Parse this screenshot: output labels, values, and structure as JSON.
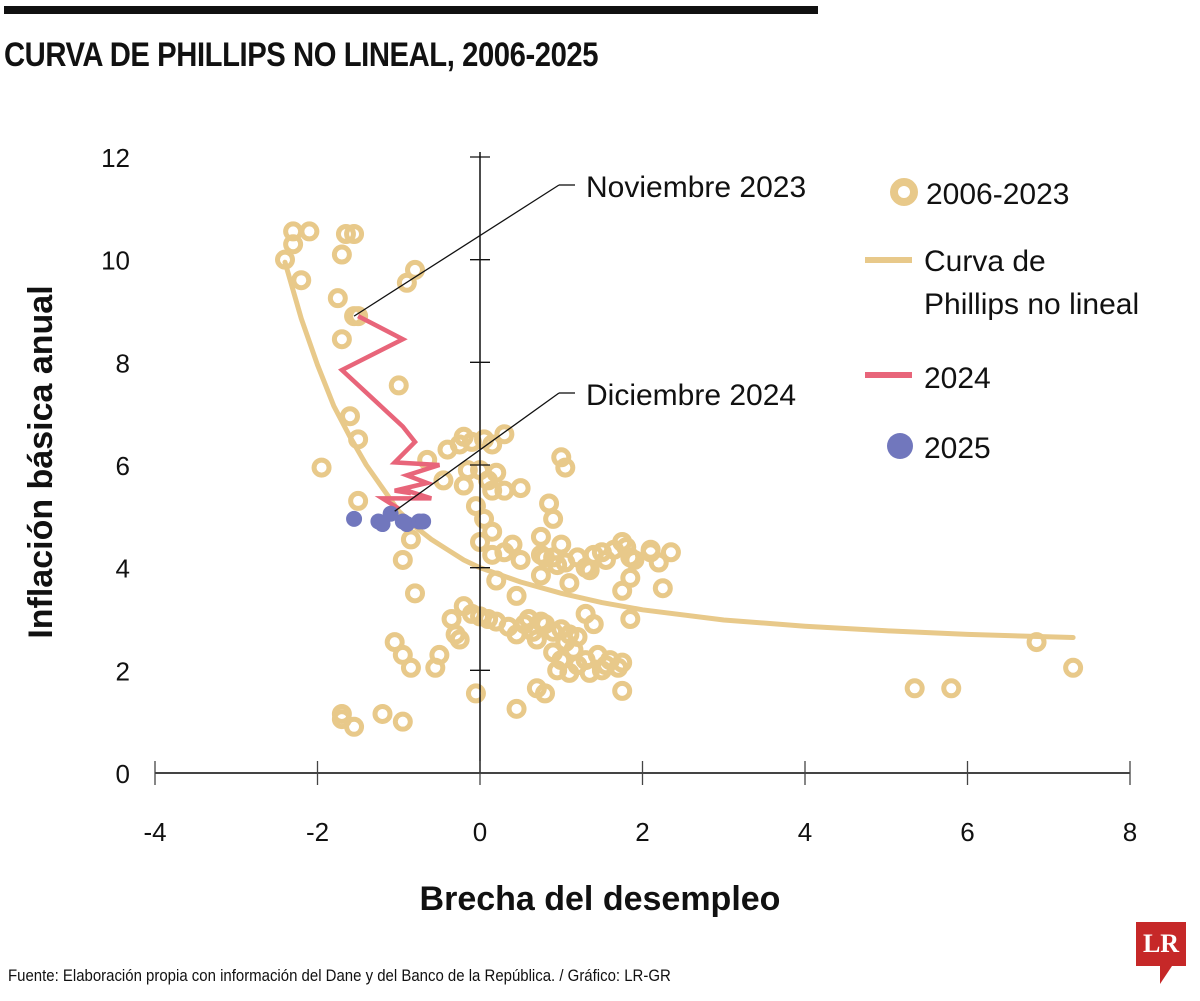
{
  "header": {
    "title": "CURVA DE PHILLIPS NO LINEAL, 2006-2025"
  },
  "footer": {
    "source": "Fuente: Elaboración propia con información del Dane y del Banco de la República. / Gráfico: LR-GR",
    "logo": "LR"
  },
  "colors": {
    "scatter_2006_2023": "#E8C98A",
    "curve": "#E8C98A",
    "line_2024": "#E8657A",
    "points_2025": "#7177BD",
    "axis": "#111111"
  },
  "chart_data": {
    "type": "scatter",
    "title": "CURVA DE PHILLIPS NO LINEAL, 2006-2025",
    "xlabel": "Brecha del desempleo",
    "ylabel": "Inflación básica anual",
    "xlim": [
      -4,
      8
    ],
    "ylim": [
      0,
      12
    ],
    "xticks": [
      -4,
      -2,
      0,
      2,
      4,
      6,
      8
    ],
    "yticks": [
      0,
      2,
      4,
      6,
      8,
      10,
      12
    ],
    "xtick_labels": [
      "-4",
      "-2",
      "0",
      "2",
      "4",
      "6",
      "8"
    ],
    "ytick_labels": [
      "0",
      "2",
      "4",
      "6",
      "8",
      "10",
      "12"
    ],
    "grid": false,
    "legend_position": "top-right",
    "legend": [
      {
        "label": "2006-2023",
        "kind": "ring"
      },
      {
        "label": "Curva de Phillips no lineal",
        "kind": "line",
        "lines": [
          "Curva de",
          "Phillips no lineal"
        ]
      },
      {
        "label": "2024",
        "kind": "line"
      },
      {
        "label": "2025",
        "kind": "dot"
      }
    ],
    "annotations": [
      {
        "text": "Noviembre 2023",
        "x": -1.55,
        "y": 8.9
      },
      {
        "text": "Diciembre 2024",
        "x": -1.05,
        "y": 5.1
      }
    ],
    "series": [
      {
        "name": "2006-2023",
        "kind": "ring",
        "points": [
          [
            -2.4,
            10.0
          ],
          [
            -2.3,
            10.3
          ],
          [
            -2.3,
            10.55
          ],
          [
            -2.1,
            10.55
          ],
          [
            -2.2,
            9.6
          ],
          [
            -1.75,
            9.25
          ],
          [
            -1.7,
            10.1
          ],
          [
            -1.65,
            10.5
          ],
          [
            -1.55,
            10.5
          ],
          [
            -1.7,
            8.45
          ],
          [
            -1.55,
            8.9
          ],
          [
            -1.5,
            8.9
          ],
          [
            -0.9,
            9.55
          ],
          [
            -0.8,
            9.8
          ],
          [
            -1.0,
            7.55
          ],
          [
            -1.6,
            6.95
          ],
          [
            -1.5,
            6.5
          ],
          [
            -1.95,
            5.95
          ],
          [
            -1.5,
            5.3
          ],
          [
            -0.65,
            6.1
          ],
          [
            -0.4,
            6.3
          ],
          [
            -0.25,
            6.4
          ],
          [
            -0.2,
            6.55
          ],
          [
            -0.1,
            6.45
          ],
          [
            0.05,
            6.5
          ],
          [
            0.15,
            6.4
          ],
          [
            0.3,
            6.6
          ],
          [
            -0.45,
            5.7
          ],
          [
            -0.2,
            5.6
          ],
          [
            -0.15,
            5.9
          ],
          [
            0.0,
            5.9
          ],
          [
            0.1,
            5.7
          ],
          [
            0.2,
            5.85
          ],
          [
            0.3,
            5.5
          ],
          [
            0.15,
            5.5
          ],
          [
            0.5,
            5.55
          ],
          [
            -0.05,
            5.2
          ],
          [
            0.05,
            4.95
          ],
          [
            0.15,
            4.7
          ],
          [
            0.0,
            4.5
          ],
          [
            -0.85,
            4.55
          ],
          [
            -0.95,
            4.15
          ],
          [
            -0.8,
            3.5
          ],
          [
            0.15,
            4.25
          ],
          [
            0.3,
            4.3
          ],
          [
            0.4,
            4.45
          ],
          [
            0.5,
            4.15
          ],
          [
            0.75,
            4.25
          ],
          [
            0.9,
            4.2
          ],
          [
            0.95,
            4.05
          ],
          [
            1.05,
            4.1
          ],
          [
            1.2,
            4.2
          ],
          [
            1.3,
            4.0
          ],
          [
            1.4,
            4.25
          ],
          [
            1.5,
            4.3
          ],
          [
            1.55,
            4.15
          ],
          [
            1.65,
            4.35
          ],
          [
            1.75,
            4.5
          ],
          [
            1.8,
            4.4
          ],
          [
            1.85,
            4.2
          ],
          [
            1.9,
            4.15
          ],
          [
            2.1,
            4.3
          ],
          [
            2.2,
            4.1
          ],
          [
            2.35,
            4.3
          ],
          [
            0.75,
            4.6
          ],
          [
            0.85,
            5.25
          ],
          [
            0.9,
            4.95
          ],
          [
            1.0,
            4.45
          ],
          [
            1.0,
            6.15
          ],
          [
            1.05,
            5.95
          ],
          [
            2.1,
            4.35
          ],
          [
            2.25,
            3.6
          ],
          [
            0.2,
            3.75
          ],
          [
            0.45,
            3.45
          ],
          [
            0.75,
            3.85
          ],
          [
            0.8,
            4.2
          ],
          [
            1.1,
            3.7
          ],
          [
            1.35,
            3.95
          ],
          [
            1.75,
            3.55
          ],
          [
            1.85,
            3.8
          ],
          [
            1.85,
            3.0
          ],
          [
            -0.2,
            3.25
          ],
          [
            -0.1,
            3.1
          ],
          [
            -0.35,
            3.0
          ],
          [
            0.0,
            3.05
          ],
          [
            0.1,
            3.0
          ],
          [
            0.2,
            2.95
          ],
          [
            0.35,
            2.85
          ],
          [
            0.45,
            2.7
          ],
          [
            0.55,
            2.9
          ],
          [
            0.65,
            2.75
          ],
          [
            0.7,
            2.6
          ],
          [
            0.8,
            2.9
          ],
          [
            0.9,
            2.75
          ],
          [
            1.0,
            2.8
          ],
          [
            1.05,
            2.55
          ],
          [
            1.1,
            2.7
          ],
          [
            1.2,
            2.65
          ],
          [
            1.3,
            3.1
          ],
          [
            1.4,
            2.9
          ],
          [
            0.6,
            3.0
          ],
          [
            0.75,
            2.95
          ],
          [
            0.9,
            2.35
          ],
          [
            1.0,
            2.2
          ],
          [
            1.15,
            2.4
          ],
          [
            1.3,
            2.2
          ],
          [
            1.45,
            2.3
          ],
          [
            1.55,
            2.1
          ],
          [
            1.7,
            2.05
          ],
          [
            1.75,
            2.15
          ],
          [
            0.95,
            2.0
          ],
          [
            1.1,
            1.95
          ],
          [
            1.2,
            2.1
          ],
          [
            1.35,
            1.95
          ],
          [
            1.5,
            2.0
          ],
          [
            1.6,
            2.2
          ],
          [
            0.7,
            1.65
          ],
          [
            0.8,
            1.55
          ],
          [
            1.75,
            1.6
          ],
          [
            0.45,
            1.25
          ],
          [
            -0.05,
            1.55
          ],
          [
            -0.3,
            2.7
          ],
          [
            -0.25,
            2.6
          ],
          [
            -0.5,
            2.3
          ],
          [
            -0.55,
            2.05
          ],
          [
            -0.85,
            2.05
          ],
          [
            -1.05,
            2.55
          ],
          [
            -0.95,
            2.3
          ],
          [
            -1.7,
            1.15
          ],
          [
            -1.7,
            1.05
          ],
          [
            -1.55,
            0.9
          ],
          [
            -1.2,
            1.15
          ],
          [
            -0.95,
            1.0
          ],
          [
            5.35,
            1.65
          ],
          [
            5.8,
            1.65
          ],
          [
            6.85,
            2.55
          ],
          [
            7.3,
            2.05
          ]
        ]
      },
      {
        "name": "Curva de Phillips no lineal",
        "kind": "curve",
        "points": [
          [
            -2.4,
            9.95
          ],
          [
            -2.2,
            8.85
          ],
          [
            -2.0,
            7.95
          ],
          [
            -1.8,
            7.15
          ],
          [
            -1.6,
            6.55
          ],
          [
            -1.4,
            6.0
          ],
          [
            -1.2,
            5.55
          ],
          [
            -1.0,
            5.1
          ],
          [
            -0.8,
            4.8
          ],
          [
            -0.6,
            4.55
          ],
          [
            -0.4,
            4.35
          ],
          [
            -0.2,
            4.15
          ],
          [
            0.0,
            4.0
          ],
          [
            0.5,
            3.72
          ],
          [
            1.0,
            3.5
          ],
          [
            1.5,
            3.32
          ],
          [
            2.0,
            3.18
          ],
          [
            3.0,
            2.98
          ],
          [
            4.0,
            2.86
          ],
          [
            5.0,
            2.77
          ],
          [
            6.0,
            2.7
          ],
          [
            7.3,
            2.64
          ]
        ]
      },
      {
        "name": "2024",
        "kind": "line",
        "points": [
          [
            -1.5,
            8.9
          ],
          [
            -0.95,
            8.45
          ],
          [
            -1.7,
            7.85
          ],
          [
            -0.95,
            6.75
          ],
          [
            -0.8,
            6.45
          ],
          [
            -1.05,
            6.05
          ],
          [
            -0.5,
            6.0
          ],
          [
            -0.9,
            5.8
          ],
          [
            -0.65,
            5.65
          ],
          [
            -1.05,
            5.5
          ],
          [
            -0.85,
            5.45
          ],
          [
            -0.9,
            5.5
          ],
          [
            -0.6,
            5.35
          ],
          [
            -1.2,
            5.35
          ],
          [
            -1.0,
            5.15
          ]
        ]
      },
      {
        "name": "2025",
        "kind": "dot",
        "points": [
          [
            -1.55,
            4.95
          ],
          [
            -1.25,
            4.9
          ],
          [
            -1.2,
            4.85
          ],
          [
            -1.1,
            5.05
          ],
          [
            -0.95,
            4.9
          ],
          [
            -0.9,
            4.85
          ],
          [
            -0.75,
            4.9
          ],
          [
            -0.7,
            4.9
          ]
        ]
      }
    ]
  }
}
